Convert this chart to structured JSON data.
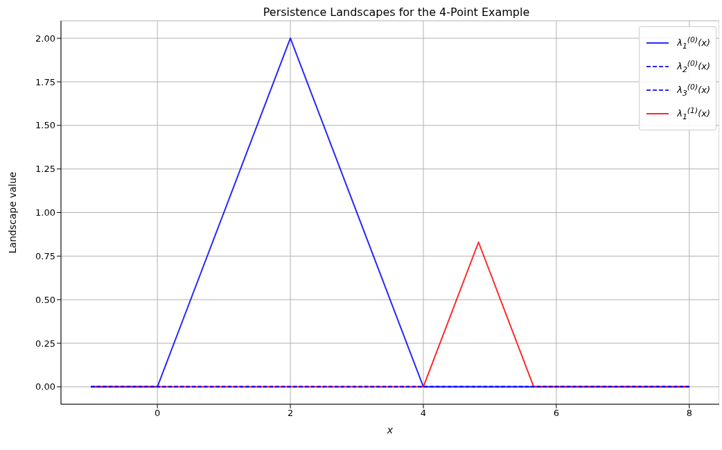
{
  "chart_data": {
    "type": "line",
    "title": "Persistence Landscapes for the 4-Point Example",
    "xlabel": "x",
    "ylabel": "Landscape value",
    "series": [
      {
        "name": "λ$_{1}$$^{(0)}$(x)",
        "color": "#0000ff",
        "line_style": "solid",
        "x": [
          -1,
          0,
          2,
          4,
          8
        ],
        "values": [
          0,
          0,
          2,
          0,
          0
        ]
      },
      {
        "name": "λ$_{2}$$^{(0)}$(x)",
        "color": "#0000ff",
        "line_style": "dashed",
        "x": [
          -1,
          8
        ],
        "values": [
          0,
          0
        ]
      },
      {
        "name": "λ$_{3}$$^{(0)}$(x)",
        "color": "#0000ff",
        "line_style": "dashed",
        "x": [
          -1,
          8
        ],
        "values": [
          0,
          0
        ]
      },
      {
        "name": "λ$_{1}$$^{(1)}$(x)",
        "color": "#ff0000",
        "line_style": "solid",
        "x": [
          -1,
          4,
          4.83,
          5.66,
          8
        ],
        "values": [
          0,
          0,
          0.83,
          0,
          0
        ]
      }
    ],
    "xlim": [
      -1.45,
      8.45
    ],
    "xticks": [
      0,
      2,
      4,
      6,
      8
    ],
    "ylim": [
      -0.1,
      2.1
    ],
    "yticks": [
      {
        "value": 0,
        "label": "0.00"
      },
      {
        "value": 0.25,
        "label": "0.25"
      },
      {
        "value": 0.5,
        "label": "0.50"
      },
      {
        "value": 0.75,
        "label": "0.75"
      },
      {
        "value": 1,
        "label": "1.00"
      },
      {
        "value": 1.25,
        "label": "1.25"
      },
      {
        "value": 1.5,
        "label": "1.50"
      },
      {
        "value": 1.75,
        "label": "1.75"
      },
      {
        "value": 2,
        "label": "2.00"
      }
    ],
    "grid": true,
    "legend": "top right",
    "marker": "none"
  }
}
